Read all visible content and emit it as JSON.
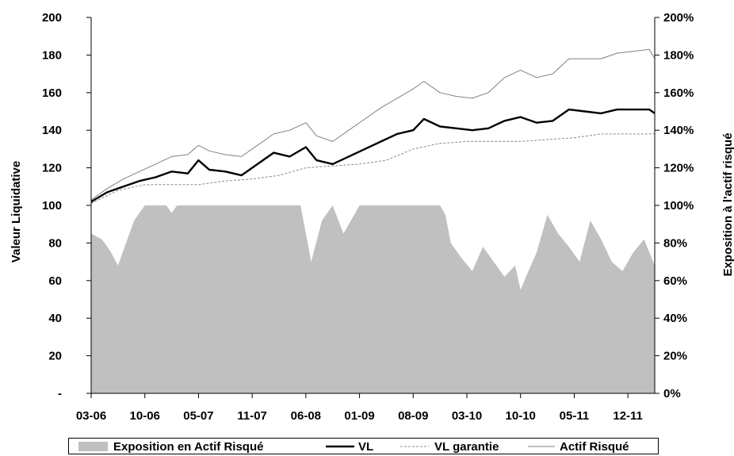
{
  "chart_data": {
    "type": "line",
    "x_categories": [
      "03-06",
      "10-06",
      "05-07",
      "11-07",
      "06-08",
      "01-09",
      "08-09",
      "03-10",
      "10-10",
      "05-11",
      "12-11"
    ],
    "ylabel_left": "Valeur Liquidative",
    "ylabel_right": "Exposition à l'actif risqué",
    "ylim_left": [
      0,
      200
    ],
    "ylim_right": [
      0,
      2.0
    ],
    "yticks_left": [
      "-",
      "20",
      "40",
      "60",
      "80",
      "100",
      "120",
      "140",
      "160",
      "180",
      "200"
    ],
    "yticks_right": [
      "0%",
      "20%",
      "40%",
      "60%",
      "80%",
      "100%",
      "120%",
      "140%",
      "160%",
      "180%",
      "200%"
    ],
    "grid": false,
    "legend_position": "bottom",
    "series": [
      {
        "name": "Exposition en Actif Risqué",
        "kind": "area",
        "axis": "right",
        "color": "#c0c0c0",
        "x": [
          0,
          0.2,
          0.35,
          0.5,
          0.65,
          0.8,
          1.0,
          1.2,
          1.4,
          1.5,
          1.6,
          1.8,
          2.0,
          2.3,
          2.6,
          3.0,
          3.3,
          3.6,
          3.9,
          4.0,
          4.1,
          4.3,
          4.5,
          4.7,
          5.0,
          5.3,
          5.6,
          5.9,
          6.2,
          6.5,
          6.6,
          6.7,
          6.9,
          7.1,
          7.3,
          7.5,
          7.7,
          7.9,
          8.0,
          8.1,
          8.3,
          8.5,
          8.7,
          8.9,
          9.1,
          9.3,
          9.5,
          9.7,
          9.9,
          10.1,
          10.3,
          10.5
        ],
        "y": [
          0.85,
          0.82,
          0.76,
          0.68,
          0.8,
          0.92,
          1.0,
          1.0,
          1.0,
          0.96,
          1.0,
          1.0,
          1.0,
          1.0,
          1.0,
          1.0,
          1.0,
          1.0,
          1.0,
          0.85,
          0.7,
          0.92,
          1.0,
          0.85,
          1.0,
          1.0,
          1.0,
          1.0,
          1.0,
          1.0,
          0.95,
          0.8,
          0.72,
          0.65,
          0.78,
          0.7,
          0.62,
          0.68,
          0.55,
          0.62,
          0.75,
          0.95,
          0.85,
          0.78,
          0.7,
          0.92,
          0.82,
          0.7,
          0.65,
          0.75,
          0.82,
          0.68
        ]
      },
      {
        "name": "VL",
        "kind": "line",
        "axis": "left",
        "color": "#000000",
        "x": [
          0,
          0.3,
          0.6,
          0.9,
          1.2,
          1.5,
          1.8,
          2.0,
          2.2,
          2.5,
          2.8,
          3.1,
          3.4,
          3.7,
          4.0,
          4.2,
          4.5,
          4.8,
          5.1,
          5.4,
          5.7,
          6.0,
          6.2,
          6.5,
          6.8,
          7.1,
          7.4,
          7.7,
          8.0,
          8.3,
          8.6,
          8.9,
          9.2,
          9.5,
          9.8,
          10.1,
          10.4,
          10.5
        ],
        "y": [
          102,
          107,
          110,
          113,
          115,
          118,
          117,
          124,
          119,
          118,
          116,
          122,
          128,
          126,
          131,
          124,
          122,
          126,
          130,
          134,
          138,
          140,
          146,
          142,
          141,
          140,
          141,
          145,
          147,
          144,
          145,
          151,
          150,
          149,
          151,
          151,
          151,
          149
        ]
      },
      {
        "name": "VL garantie",
        "kind": "line",
        "axis": "left",
        "color": "#888888",
        "x": [
          0,
          0.5,
          1.0,
          1.5,
          2.0,
          2.5,
          3.0,
          3.5,
          4.0,
          4.5,
          5.0,
          5.5,
          6.0,
          6.5,
          7.0,
          7.5,
          8.0,
          8.5,
          9.0,
          9.5,
          10.0,
          10.5
        ],
        "y": [
          101,
          108,
          111,
          111,
          111,
          113,
          114,
          116,
          120,
          121,
          122,
          124,
          130,
          133,
          134,
          134,
          134,
          135,
          136,
          138,
          138,
          138
        ]
      },
      {
        "name": "Actif Risqué",
        "kind": "line",
        "axis": "left",
        "color": "#808080",
        "x": [
          0,
          0.3,
          0.6,
          0.9,
          1.2,
          1.5,
          1.8,
          2.0,
          2.2,
          2.5,
          2.8,
          3.1,
          3.4,
          3.7,
          4.0,
          4.2,
          4.5,
          4.8,
          5.1,
          5.4,
          5.7,
          6.0,
          6.2,
          6.5,
          6.8,
          7.1,
          7.4,
          7.7,
          8.0,
          8.3,
          8.6,
          8.9,
          9.2,
          9.5,
          9.8,
          10.1,
          10.4,
          10.5
        ],
        "y": [
          103,
          109,
          114,
          118,
          122,
          126,
          127,
          132,
          129,
          127,
          126,
          132,
          138,
          140,
          144,
          137,
          134,
          140,
          146,
          152,
          157,
          162,
          166,
          160,
          158,
          157,
          160,
          168,
          172,
          168,
          170,
          178,
          178,
          178,
          181,
          182,
          183,
          178
        ]
      }
    ]
  }
}
